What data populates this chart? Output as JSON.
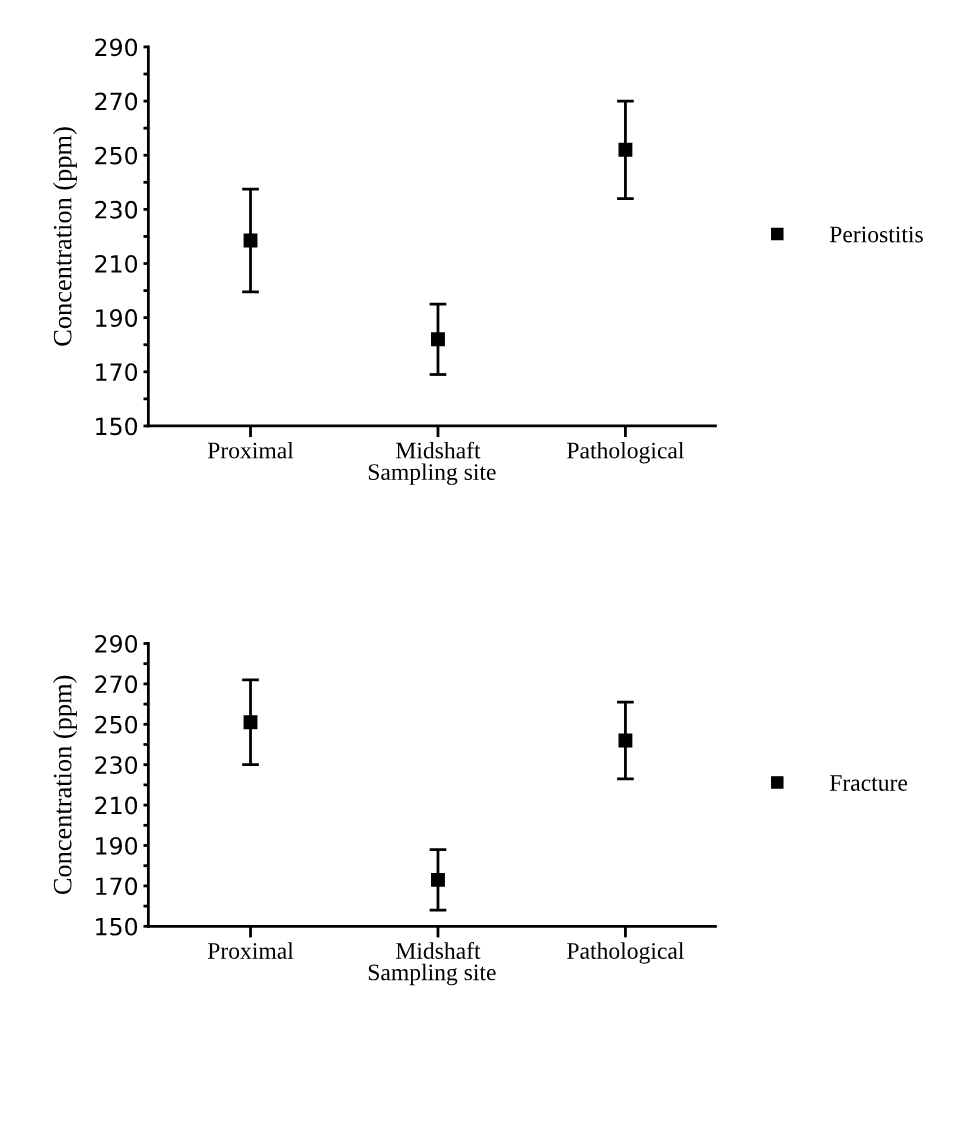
{
  "chart_data": [
    {
      "type": "scatter",
      "xlabel": "Sampling site",
      "ylabel": "Concentration (ppm)",
      "categories": [
        "Proximal",
        "Midshaft",
        "Pathological"
      ],
      "series": [
        {
          "name": "Periostitis",
          "color": "#000000",
          "values": [
            218.5,
            182,
            252
          ],
          "errors": [
            19,
            13,
            18
          ]
        }
      ],
      "ylim": [
        150,
        290
      ],
      "yticks": [
        150,
        {
          "value": 160,
          "label": null
        },
        170,
        {
          "value": 180,
          "label": null
        },
        190,
        {
          "value": 200,
          "label": null
        },
        210,
        {
          "value": 220,
          "label": null
        },
        230,
        {
          "value": 240,
          "label": null
        },
        250,
        {
          "value": 260,
          "label": null
        },
        270,
        {
          "value": 280,
          "label": null
        },
        290
      ],
      "marker": "square",
      "legend": "right",
      "grid": false
    },
    {
      "type": "scatter",
      "xlabel": "Sampling site",
      "ylabel": "Concentration (ppm)",
      "categories": [
        "Proximal",
        "Midshaft",
        "Pathological"
      ],
      "series": [
        {
          "name": "Fracture",
          "color": "#000000",
          "values": [
            251,
            173,
            242
          ],
          "errors": [
            21,
            15,
            19
          ]
        }
      ],
      "ylim": [
        150,
        290
      ],
      "yticks": [
        150,
        {
          "value": 160,
          "label": null
        },
        170,
        {
          "value": 180,
          "label": null
        },
        190,
        {
          "value": 200,
          "label": null
        },
        210,
        {
          "value": 220,
          "label": null
        },
        230,
        {
          "value": 240,
          "label": null
        },
        250,
        {
          "value": 260,
          "label": null
        },
        270,
        {
          "value": 280,
          "label": null
        },
        290
      ],
      "marker": "square",
      "legend": "right",
      "grid": false
    }
  ]
}
